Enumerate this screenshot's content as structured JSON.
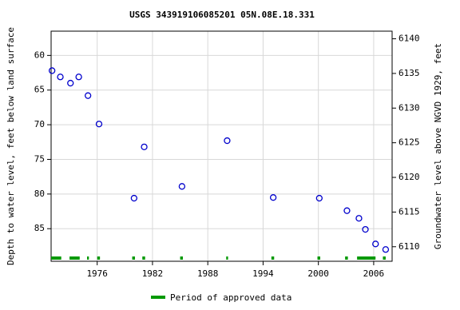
{
  "chart_data": {
    "type": "scatter",
    "title": "USGS 343919106085201 05N.08E.18.331",
    "y_label": "Depth to water level, feet below land surface",
    "y2_label": "Groundwater level above NGVD 1929, feet",
    "x": [
      1971.1,
      1972.0,
      1973.1,
      1974.0,
      1975.0,
      1976.2,
      1980.0,
      1981.1,
      1985.2,
      1990.1,
      1995.1,
      2000.1,
      2003.1,
      2004.4,
      2005.1,
      2006.2,
      2007.3
    ],
    "values": [
      62.2,
      63.1,
      64.0,
      63.1,
      65.8,
      69.9,
      80.6,
      73.2,
      78.9,
      72.3,
      80.5,
      80.6,
      82.4,
      83.5,
      85.1,
      87.2,
      88.0
    ],
    "color": "#0000cc",
    "xlim": [
      1971,
      2008
    ],
    "xticks": [
      1976,
      1982,
      1988,
      1994,
      2000,
      2006
    ],
    "ylim": [
      56.5,
      89.7
    ],
    "yticks": [
      60,
      65,
      70,
      75,
      80,
      85
    ],
    "y2lim": [
      6141.1,
      6107.9
    ],
    "y2ticks": [
      6110,
      6115,
      6120,
      6125,
      6130,
      6135,
      6140
    ],
    "grid": true,
    "approved": {
      "name": "Period of approved data",
      "color": "#009900",
      "periods": [
        [
          1971.0,
          1972.1
        ],
        [
          1973.0,
          1974.1
        ],
        [
          1974.9,
          1975.1
        ],
        [
          1976.0,
          1976.3
        ],
        [
          1979.8,
          1980.1
        ],
        [
          1980.9,
          1981.2
        ],
        [
          1985.0,
          1985.3
        ],
        [
          1990.0,
          1990.2
        ],
        [
          1994.9,
          1995.2
        ],
        [
          1999.9,
          2000.2
        ],
        [
          2002.9,
          2003.2
        ],
        [
          2004.2,
          2006.2
        ],
        [
          2007.0,
          2007.3
        ]
      ]
    }
  }
}
